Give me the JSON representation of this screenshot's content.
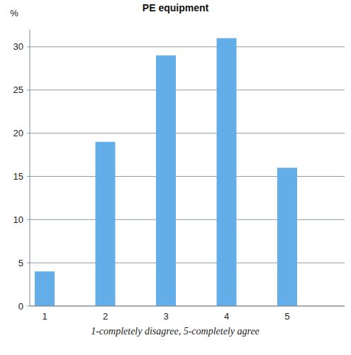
{
  "chart_data": {
    "type": "bar",
    "title": "PE equipment",
    "y_label": "%",
    "x_label": "1-completely disagree, 5-completely agree",
    "categories": [
      "1",
      "2",
      "3",
      "4",
      "5"
    ],
    "values": [
      4,
      19,
      29,
      31,
      16
    ],
    "color": "#63aee8",
    "ylim": [
      0,
      32
    ],
    "yticks": [
      0,
      5,
      10,
      15,
      20,
      25,
      30
    ],
    "grid": true
  }
}
